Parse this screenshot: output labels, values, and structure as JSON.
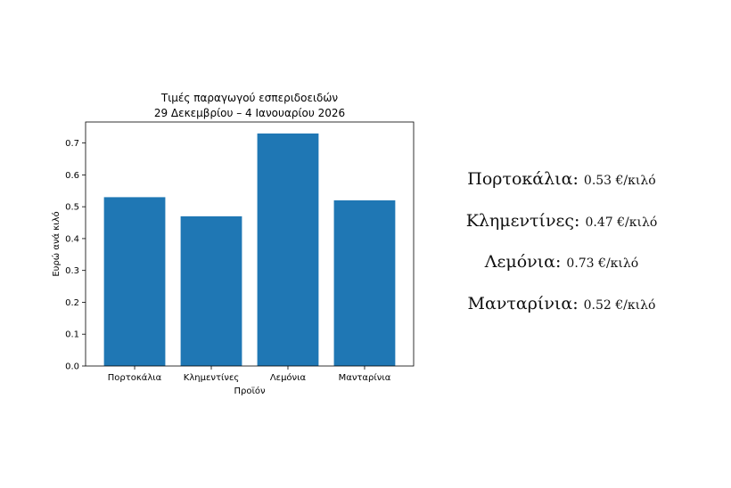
{
  "colors": {
    "bar": "#1f77b4",
    "axis": "#000000",
    "background": "#ffffff"
  },
  "chart_data": {
    "type": "bar",
    "title": "Τιμές παραγωγού εσπεριδοειδών",
    "subtitle": "29 Δεκεμβρίου – 4 Ιανουαρίου 2026",
    "xlabel": "Προϊόν",
    "ylabel": "Ευρώ ανά κιλό",
    "categories": [
      "Πορτοκάλια",
      "Κλημεντίνες",
      "Λεμόνια",
      "Μανταρίνια"
    ],
    "values": [
      0.53,
      0.47,
      0.73,
      0.52
    ],
    "ylim": [
      0,
      0.766
    ],
    "yticks": [
      "0.0",
      "0.1",
      "0.2",
      "0.3",
      "0.4",
      "0.5",
      "0.6",
      "0.7"
    ],
    "grid": false,
    "legend": "none"
  },
  "price_list": [
    {
      "name": "Πορτοκάλια",
      "price": "0.53 €/κιλό"
    },
    {
      "name": "Κλημεντίνες",
      "price": "0.47 €/κιλό"
    },
    {
      "name": "Λεμόνια",
      "price": "0.73 €/κιλό"
    },
    {
      "name": "Μανταρίνια",
      "price": "0.52 €/κιλό"
    }
  ]
}
